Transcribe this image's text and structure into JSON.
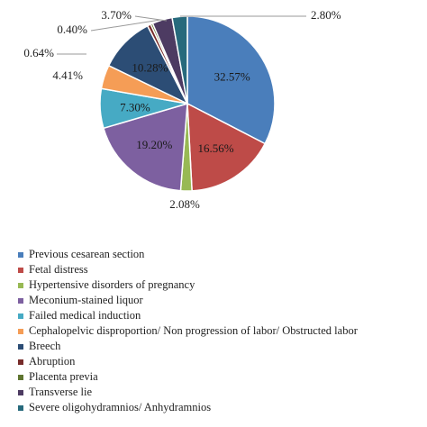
{
  "chart_data": {
    "type": "pie",
    "title": "",
    "legend_position": "bottom",
    "start_angle_deg": 0,
    "direction": "clockwise",
    "slices": [
      {
        "label": "Previous cesarean section",
        "value": 32.57,
        "display": "32.57%",
        "color": "#4a7ebb"
      },
      {
        "label": "Fetal distress",
        "value": 16.56,
        "display": "16.56%",
        "color": "#be4b48"
      },
      {
        "label": "Hypertensive disorders of pregnancy",
        "value": 2.08,
        "display": "2.08%",
        "color": "#98b954"
      },
      {
        "label": "Meconium-stained liquor",
        "value": 19.2,
        "display": "19.20%",
        "color": "#7d60a0"
      },
      {
        "label": "Failed medical induction",
        "value": 7.3,
        "display": "7.30%",
        "color": "#46aac4"
      },
      {
        "label": "Cephalopelvic disproportion/ Non progression of labor/ Obstructed labor",
        "value": 4.41,
        "display": "4.41%",
        "color": "#f59d56"
      },
      {
        "label": "Breech",
        "value": 10.28,
        "display": "10.28%",
        "color": "#2c4d75"
      },
      {
        "label": "Abruption",
        "value": 0.64,
        "display": "0.64%",
        "color": "#772c2a"
      },
      {
        "label": "Placenta previa",
        "value": 0.4,
        "display": "0.40%",
        "color": "#5f7530"
      },
      {
        "label": "Transverse lie",
        "value": 3.7,
        "display": "3.70%",
        "color": "#4d3b62"
      },
      {
        "label": "Severe oligohydramnios/ Anhydramnios",
        "value": 2.8,
        "display": "2.80%",
        "color": "#276a7c"
      }
    ]
  }
}
